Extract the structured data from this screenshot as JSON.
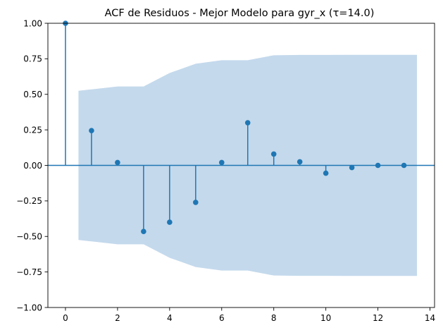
{
  "chart_data": {
    "type": "stem",
    "title": "ACF de Residuos - Mejor Modelo para gyr_x (τ=14.0)",
    "xlabel": "",
    "ylabel": "",
    "xlim": [
      -0.675,
      14.175
    ],
    "ylim": [
      -1.0,
      1.0
    ],
    "x_ticks": [
      0,
      2,
      4,
      6,
      8,
      10,
      12,
      14
    ],
    "x_tick_labels": [
      "0",
      "2",
      "4",
      "6",
      "8",
      "10",
      "12",
      "14"
    ],
    "y_ticks": [
      1.0,
      0.75,
      0.5,
      0.25,
      0.0,
      -0.25,
      -0.5,
      -0.75,
      -1.0
    ],
    "y_tick_labels": [
      "1.00",
      "0.75",
      "0.50",
      "0.25",
      "0.00",
      "−0.25",
      "−0.50",
      "−0.75",
      "−1.00"
    ],
    "grid": false,
    "legend": "none",
    "lags": [
      0,
      1,
      2,
      3,
      4,
      5,
      6,
      7,
      8,
      9,
      10,
      11,
      12,
      13
    ],
    "values": [
      1.0,
      0.245,
      0.02,
      -0.465,
      -0.4,
      -0.26,
      0.02,
      0.3,
      0.08,
      0.025,
      -0.055,
      -0.015,
      0.0,
      0.0
    ],
    "confidence_band": {
      "x": [
        0.5,
        1,
        2,
        3,
        4,
        5,
        6,
        7,
        8,
        9,
        10,
        11,
        12,
        13,
        13.5
      ],
      "upper": [
        0.525,
        0.535,
        0.555,
        0.555,
        0.65,
        0.715,
        0.74,
        0.74,
        0.775,
        0.777,
        0.777,
        0.778,
        0.778,
        0.778,
        0.778
      ]
    },
    "colors": {
      "stem": "#1f77b4",
      "band": "#c4d9ec",
      "zero_line": "#1f77b4",
      "axes": "#000000"
    }
  }
}
